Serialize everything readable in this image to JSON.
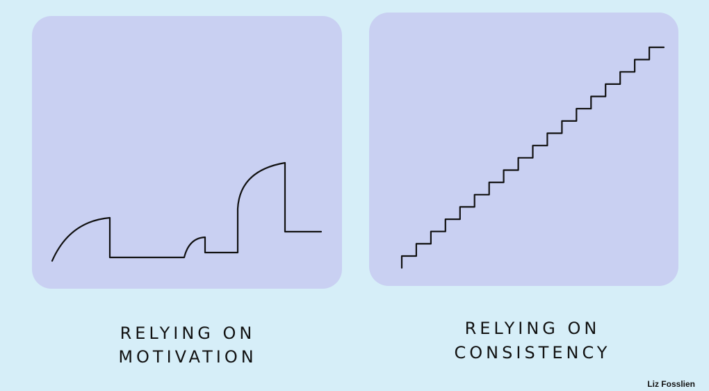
{
  "panels": [
    {
      "caption": [
        "RELYING ON",
        "MOTIVATION"
      ]
    },
    {
      "caption": [
        "RELYING ON",
        "CONSISTENCY"
      ]
    }
  ],
  "credit": "Liz Fosslien"
}
